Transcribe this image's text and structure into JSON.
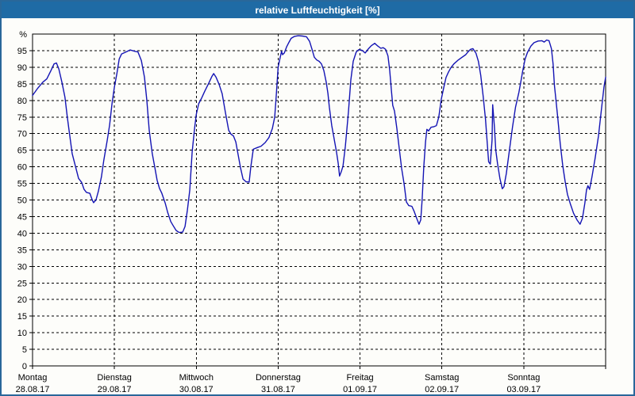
{
  "window": {
    "title": "relative Luftfeuchtigkeit [%]"
  },
  "colors": {
    "titlebar_bg": "#1f6ba5",
    "titlebar_text": "#ffffff",
    "window_border": "#29679a",
    "background": "#fdfdfa",
    "line": "#1414b4",
    "grid": "#000000",
    "text": "#000000"
  },
  "chart_data": {
    "type": "line",
    "title": "relative Luftfeuchtigkeit [%]",
    "ylabel": "%",
    "ylim": [
      0,
      100
    ],
    "y_tick_step": 5,
    "y_ticks": [
      0,
      5,
      10,
      15,
      20,
      25,
      30,
      35,
      40,
      45,
      50,
      55,
      60,
      65,
      70,
      75,
      80,
      85,
      90,
      95
    ],
    "grid": "dashed",
    "x_unit": "hours",
    "xlim_hours": [
      0,
      168
    ],
    "days": [
      {
        "name": "Montag",
        "date": "28.08.17",
        "start_hour": 0
      },
      {
        "name": "Dienstag",
        "date": "29.08.17",
        "start_hour": 24
      },
      {
        "name": "Mittwoch",
        "date": "30.08.17",
        "start_hour": 48
      },
      {
        "name": "Donnerstag",
        "date": "31.08.17",
        "start_hour": 72
      },
      {
        "name": "Freitag",
        "date": "01.09.17",
        "start_hour": 96
      },
      {
        "name": "Samstag",
        "date": "02.09.17",
        "start_hour": 120
      },
      {
        "name": "Sonntag",
        "date": "03.09.17",
        "start_hour": 144
      }
    ],
    "series": [
      {
        "name": "relative Luftfeuchtigkeit",
        "color": "#1414b4",
        "points": [
          [
            0,
            81.5
          ],
          [
            1.4,
            83.5
          ],
          [
            3,
            85.5
          ],
          [
            4.2,
            86.5
          ],
          [
            5.4,
            89
          ],
          [
            6.3,
            91
          ],
          [
            7,
            91.3
          ],
          [
            7.7,
            89.5
          ],
          [
            8.6,
            85.5
          ],
          [
            9.5,
            81
          ],
          [
            10.2,
            75
          ],
          [
            10.7,
            71
          ],
          [
            11.6,
            64
          ],
          [
            12.6,
            60
          ],
          [
            13.5,
            56.5
          ],
          [
            14.4,
            55.3
          ],
          [
            15.1,
            53.2
          ],
          [
            15.8,
            52.3
          ],
          [
            16.8,
            52
          ],
          [
            17.5,
            50
          ],
          [
            17.9,
            49.2
          ],
          [
            18.6,
            50
          ],
          [
            19.3,
            52.6
          ],
          [
            20.2,
            57
          ],
          [
            20.9,
            62
          ],
          [
            21.9,
            68
          ],
          [
            22.6,
            72.6
          ],
          [
            23.3,
            79
          ],
          [
            24,
            84
          ],
          [
            24.7,
            88
          ],
          [
            25.4,
            92.5
          ],
          [
            26.1,
            94
          ],
          [
            27.2,
            94.5
          ],
          [
            28.6,
            95.2
          ],
          [
            30,
            94.8
          ],
          [
            30.9,
            94.6
          ],
          [
            31.9,
            92
          ],
          [
            32.8,
            87
          ],
          [
            33.5,
            80
          ],
          [
            34.2,
            71
          ],
          [
            35.1,
            64
          ],
          [
            35.8,
            60
          ],
          [
            36.5,
            56
          ],
          [
            37.2,
            53.5
          ],
          [
            37.9,
            52
          ],
          [
            38.9,
            49
          ],
          [
            39.6,
            46.3
          ],
          [
            40.5,
            43.5
          ],
          [
            41.2,
            42.3
          ],
          [
            42.1,
            40.8
          ],
          [
            43,
            40.2
          ],
          [
            44,
            40.3
          ],
          [
            44.7,
            42
          ],
          [
            45.4,
            47
          ],
          [
            46.1,
            53
          ],
          [
            46.8,
            64.5
          ],
          [
            47.5,
            71.5
          ],
          [
            48,
            75.8
          ],
          [
            48.7,
            79
          ],
          [
            49.6,
            80.8
          ],
          [
            50.5,
            82.8
          ],
          [
            51.7,
            85.3
          ],
          [
            52.6,
            87.3
          ],
          [
            53.1,
            88.1
          ],
          [
            53.8,
            87
          ],
          [
            54.7,
            84.8
          ],
          [
            55.6,
            82
          ],
          [
            56.5,
            76.6
          ],
          [
            57.5,
            71
          ],
          [
            58.2,
            69.8
          ],
          [
            58.9,
            69.3
          ],
          [
            59.6,
            67.5
          ],
          [
            60.3,
            63.5
          ],
          [
            61,
            59.5
          ],
          [
            61.7,
            56.3
          ],
          [
            62.6,
            55.5
          ],
          [
            63.5,
            55.4
          ],
          [
            64,
            60
          ],
          [
            64.7,
            65.3
          ],
          [
            65.9,
            65.8
          ],
          [
            67,
            66.2
          ],
          [
            68.2,
            67.3
          ],
          [
            69.3,
            68.8
          ],
          [
            70.3,
            71.5
          ],
          [
            71,
            75
          ],
          [
            71.4,
            81
          ],
          [
            72,
            90
          ],
          [
            72.5,
            92.5
          ],
          [
            73,
            94.8
          ],
          [
            73.3,
            93.8
          ],
          [
            73.8,
            94.3
          ],
          [
            74.5,
            96.2
          ],
          [
            75.2,
            97.6
          ],
          [
            75.8,
            98.7
          ],
          [
            76.8,
            99.3
          ],
          [
            77.9,
            99.5
          ],
          [
            79.1,
            99.4
          ],
          [
            80.3,
            99.2
          ],
          [
            81.2,
            97.8
          ],
          [
            81.9,
            95.5
          ],
          [
            82.6,
            93
          ],
          [
            83.3,
            92.2
          ],
          [
            84,
            91.8
          ],
          [
            84.7,
            91
          ],
          [
            85.4,
            89
          ],
          [
            86.1,
            85.5
          ],
          [
            86.6,
            82
          ],
          [
            87,
            78
          ],
          [
            87.7,
            72.5
          ],
          [
            88.4,
            68.5
          ],
          [
            89.1,
            64.5
          ],
          [
            89.6,
            61
          ],
          [
            90,
            57.2
          ],
          [
            90.5,
            58.5
          ],
          [
            91,
            60.2
          ],
          [
            91.7,
            66.2
          ],
          [
            92.6,
            76.6
          ],
          [
            93.3,
            86.2
          ],
          [
            94,
            91.8
          ],
          [
            94.9,
            94.6
          ],
          [
            95.6,
            95.3
          ],
          [
            96.6,
            95.1
          ],
          [
            97.5,
            94.3
          ],
          [
            98.4,
            95.5
          ],
          [
            99.3,
            96.5
          ],
          [
            100.3,
            97.2
          ],
          [
            101.2,
            96.4
          ],
          [
            102.1,
            95.7
          ],
          [
            102.8,
            95.9
          ],
          [
            103.5,
            95.4
          ],
          [
            104.2,
            93.4
          ],
          [
            104.7,
            89
          ],
          [
            105.2,
            83
          ],
          [
            105.6,
            78.5
          ],
          [
            106.1,
            76.8
          ],
          [
            106.8,
            71.5
          ],
          [
            107.5,
            65.5
          ],
          [
            108.2,
            59.5
          ],
          [
            108.9,
            55
          ],
          [
            109.6,
            49.4
          ],
          [
            110.3,
            48.3
          ],
          [
            111.2,
            48.1
          ],
          [
            111.9,
            46.5
          ],
          [
            112.6,
            44.5
          ],
          [
            113.3,
            42.7
          ],
          [
            113.8,
            44
          ],
          [
            114.2,
            50
          ],
          [
            114.7,
            60
          ],
          [
            115.2,
            67.5
          ],
          [
            115.6,
            71.3
          ],
          [
            116.1,
            70.8
          ],
          [
            116.8,
            71.9
          ],
          [
            117.7,
            72.1
          ],
          [
            118.4,
            72.4
          ],
          [
            119.1,
            75
          ],
          [
            119.8,
            80.3
          ],
          [
            120.5,
            83.7
          ],
          [
            121.2,
            86.9
          ],
          [
            121.9,
            88.5
          ],
          [
            122.6,
            89.8
          ],
          [
            123.5,
            91
          ],
          [
            124.7,
            92.1
          ],
          [
            125.9,
            93
          ],
          [
            127,
            93.8
          ],
          [
            127.7,
            94.7
          ],
          [
            128.4,
            95.4
          ],
          [
            129.1,
            95.6
          ],
          [
            130,
            94.2
          ],
          [
            130.7,
            91.8
          ],
          [
            131.4,
            87.5
          ],
          [
            132.1,
            81.3
          ],
          [
            132.8,
            74.2
          ],
          [
            133.3,
            67
          ],
          [
            133.7,
            61.5
          ],
          [
            134.2,
            60.8
          ],
          [
            134.7,
            68
          ],
          [
            134.9,
            78.7
          ],
          [
            135.4,
            72
          ],
          [
            135.8,
            65
          ],
          [
            136.3,
            61
          ],
          [
            137,
            56.5
          ],
          [
            137.7,
            53.4
          ],
          [
            138.2,
            54
          ],
          [
            138.9,
            58
          ],
          [
            139.8,
            65
          ],
          [
            140.7,
            72
          ],
          [
            141.6,
            78
          ],
          [
            142.6,
            82.5
          ],
          [
            143.3,
            86.5
          ],
          [
            143.7,
            89
          ],
          [
            144.4,
            92.5
          ],
          [
            145.1,
            94.5
          ],
          [
            146.1,
            96.4
          ],
          [
            147,
            97.4
          ],
          [
            148.2,
            97.9
          ],
          [
            149.3,
            98
          ],
          [
            150,
            97.6
          ],
          [
            150.7,
            98.2
          ],
          [
            151.4,
            98
          ],
          [
            152.1,
            95.6
          ],
          [
            152.6,
            91
          ],
          [
            153,
            84.5
          ],
          [
            153.5,
            79.5
          ],
          [
            154,
            74.5
          ],
          [
            154.7,
            67
          ],
          [
            155.4,
            60.5
          ],
          [
            156.1,
            55.7
          ],
          [
            156.8,
            51.7
          ],
          [
            157.7,
            48.7
          ],
          [
            158.6,
            46
          ],
          [
            159.6,
            44
          ],
          [
            160.5,
            42.7
          ],
          [
            161.2,
            44.5
          ],
          [
            161.9,
            49
          ],
          [
            162.4,
            53
          ],
          [
            162.8,
            54.3
          ],
          [
            163.3,
            53.2
          ],
          [
            164,
            57
          ],
          [
            164.9,
            62.5
          ],
          [
            165.9,
            69.3
          ],
          [
            166.8,
            77.5
          ],
          [
            167.5,
            84
          ],
          [
            168,
            87
          ]
        ]
      }
    ]
  }
}
